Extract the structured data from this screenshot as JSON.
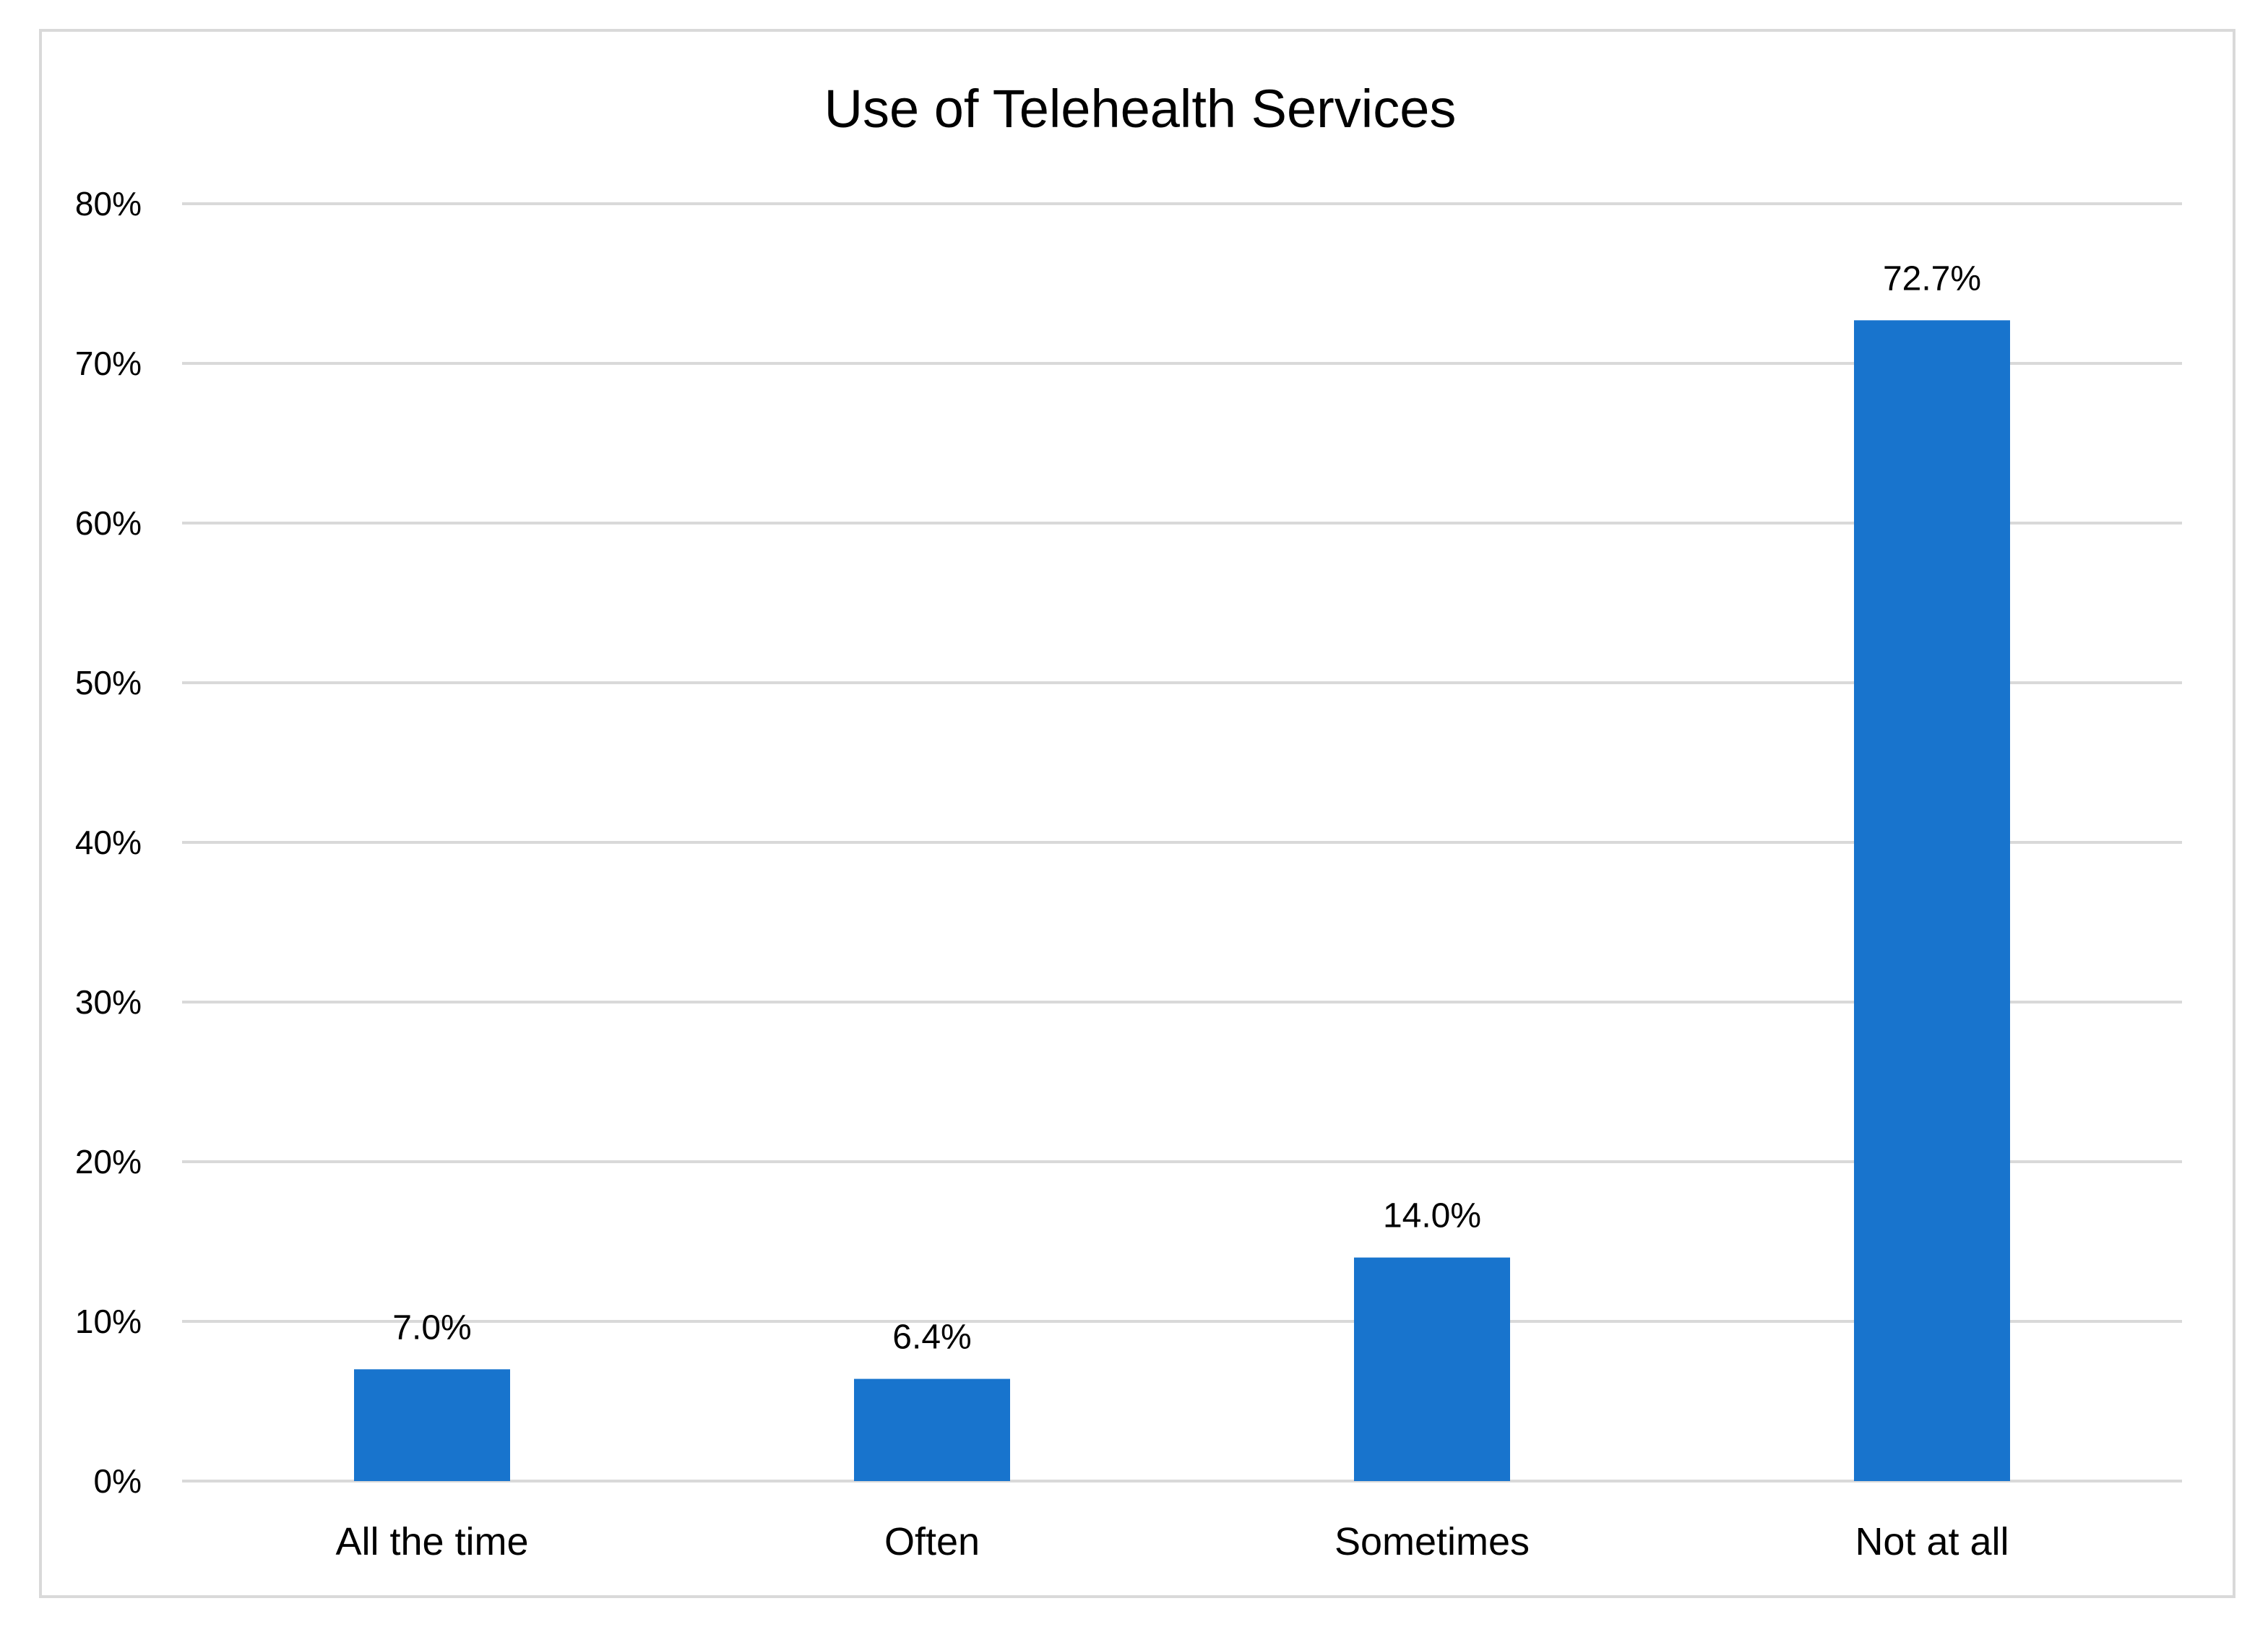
{
  "chart_data": {
    "type": "bar",
    "title": "Use of Telehealth Services",
    "categories": [
      "All the time",
      "Often",
      "Sometimes",
      "Not at all"
    ],
    "values": [
      7.0,
      6.4,
      14.0,
      72.7
    ],
    "value_labels": [
      "7.0%",
      "6.4%",
      "14.0%",
      "72.7%"
    ],
    "xlabel": "",
    "ylabel": "",
    "ylim": [
      0,
      80
    ],
    "yticks": [
      0,
      10,
      20,
      30,
      40,
      50,
      60,
      70,
      80
    ],
    "ytick_labels": [
      "0%",
      "10%",
      "20%",
      "30%",
      "40%",
      "50%",
      "60%",
      "70%",
      "80%"
    ],
    "grid": true,
    "legend": "none",
    "bar_color": "#1874CD",
    "grid_color": "#D9D9D9"
  }
}
